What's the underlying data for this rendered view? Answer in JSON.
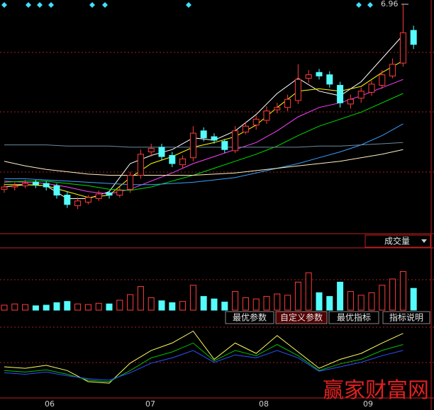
{
  "chart_data": {
    "type": "candlestick",
    "ylim": [
      5.0,
      7.0
    ],
    "candles": {
      "open": [
        5.38,
        5.4,
        5.41,
        5.44,
        5.43,
        5.41,
        5.33,
        5.24,
        5.27,
        5.3,
        5.35,
        5.33,
        5.38,
        5.5,
        5.7,
        5.74,
        5.67,
        5.59,
        5.65,
        5.88,
        5.83,
        5.79,
        5.71,
        5.87,
        5.93,
        5.97,
        6.06,
        6.08,
        6.14,
        6.33,
        6.38,
        6.36,
        6.27,
        6.11,
        6.16,
        6.21,
        6.27,
        6.35,
        6.46,
        6.74
      ],
      "close": [
        5.4,
        5.41,
        5.43,
        5.42,
        5.4,
        5.33,
        5.25,
        5.28,
        5.31,
        5.34,
        5.33,
        5.37,
        5.5,
        5.68,
        5.73,
        5.66,
        5.6,
        5.64,
        5.86,
        5.82,
        5.8,
        5.72,
        5.88,
        5.92,
        5.98,
        6.05,
        6.08,
        6.15,
        6.32,
        6.36,
        6.35,
        6.28,
        6.12,
        6.15,
        6.22,
        6.28,
        6.36,
        6.45,
        6.72,
        6.62
      ],
      "high": [
        5.43,
        5.44,
        5.46,
        5.46,
        5.45,
        5.43,
        5.36,
        5.31,
        5.33,
        5.37,
        5.37,
        5.4,
        5.53,
        5.72,
        5.77,
        5.77,
        5.7,
        5.67,
        5.92,
        5.91,
        5.86,
        5.81,
        5.92,
        5.96,
        6.01,
        6.09,
        6.12,
        6.19,
        6.45,
        6.4,
        6.41,
        6.39,
        6.3,
        6.19,
        6.25,
        6.31,
        6.4,
        6.5,
        6.96,
        6.78
      ],
      "low": [
        5.35,
        5.37,
        5.39,
        5.39,
        5.37,
        5.3,
        5.22,
        5.21,
        5.25,
        5.28,
        5.3,
        5.31,
        5.35,
        5.47,
        5.66,
        5.63,
        5.57,
        5.56,
        5.62,
        5.79,
        5.77,
        5.69,
        5.69,
        5.85,
        5.89,
        5.94,
        6.03,
        6.05,
        6.11,
        6.29,
        6.32,
        6.25,
        6.08,
        6.07,
        6.12,
        6.18,
        6.24,
        6.33,
        6.43,
        6.58
      ]
    },
    "line_x": [
      0,
      2,
      4,
      6,
      8,
      10,
      12,
      14,
      16,
      18,
      20,
      22,
      24,
      26,
      28,
      30,
      32,
      34,
      36,
      38
    ],
    "lines": [
      {
        "color": "#ffffff",
        "values": [
          5.4,
          5.42,
          5.41,
          5.3,
          5.3,
          5.36,
          5.6,
          5.67,
          5.72,
          5.82,
          5.8,
          5.88,
          6.02,
          6.2,
          6.33,
          6.22,
          6.18,
          6.3,
          6.5,
          6.7
        ]
      },
      {
        "color": "#ffff00",
        "values": [
          5.42,
          5.42,
          5.41,
          5.36,
          5.31,
          5.33,
          5.48,
          5.6,
          5.66,
          5.74,
          5.78,
          5.83,
          5.93,
          6.08,
          6.22,
          6.24,
          6.22,
          6.26,
          6.38,
          6.48
        ]
      },
      {
        "color": "#ff40ff",
        "values": [
          5.45,
          5.44,
          5.43,
          5.4,
          5.36,
          5.34,
          5.38,
          5.45,
          5.52,
          5.6,
          5.66,
          5.72,
          5.78,
          5.88,
          6.0,
          6.08,
          6.12,
          6.18,
          6.25,
          6.32
        ]
      },
      {
        "color": "#00e000",
        "values": [
          5.44,
          5.45,
          5.45,
          5.43,
          5.41,
          5.38,
          5.37,
          5.4,
          5.45,
          5.5,
          5.56,
          5.62,
          5.68,
          5.75,
          5.84,
          5.92,
          5.98,
          6.04,
          6.12,
          6.2
        ]
      },
      {
        "color": "#3aa0ff",
        "values": [
          5.47,
          5.47,
          5.46,
          5.45,
          5.44,
          5.43,
          5.42,
          5.42,
          5.43,
          5.44,
          5.46,
          5.48,
          5.52,
          5.56,
          5.6,
          5.65,
          5.7,
          5.76,
          5.84,
          5.94
        ]
      },
      {
        "color": "#fff0c0",
        "values": [
          5.62,
          5.58,
          5.55,
          5.53,
          5.51,
          5.5,
          5.5,
          5.5,
          5.5,
          5.5,
          5.51,
          5.52,
          5.54,
          5.56,
          5.58,
          5.6,
          5.62,
          5.65,
          5.68,
          5.72
        ]
      },
      {
        "color": "#6a8aa0",
        "values": [
          5.76,
          5.76,
          5.76,
          5.75,
          5.75,
          5.75,
          5.74,
          5.74,
          5.74,
          5.74,
          5.74,
          5.74,
          5.74,
          5.74,
          5.74,
          5.75,
          5.75,
          5.76,
          5.77,
          5.78
        ]
      }
    ],
    "volume": {
      "title": "成交量",
      "ylim": [
        0,
        100
      ],
      "values": [
        8,
        10,
        9,
        7,
        8,
        12,
        14,
        10,
        9,
        11,
        10,
        16,
        25,
        38,
        20,
        15,
        12,
        14,
        40,
        22,
        18,
        13,
        30,
        20,
        18,
        22,
        26,
        24,
        45,
        60,
        28,
        22,
        45,
        30,
        24,
        28,
        40,
        50,
        62,
        35
      ]
    },
    "indicator": {
      "ylim": [
        0,
        100
      ],
      "lines": [
        {
          "color": "#ffff60",
          "values": [
            40,
            38,
            42,
            35,
            20,
            18,
            45,
            62,
            72,
            88,
            50,
            72,
            58,
            82,
            60,
            38,
            50,
            58,
            72,
            85
          ]
        },
        {
          "color": "#00c000",
          "values": [
            35,
            33,
            36,
            30,
            22,
            20,
            35,
            52,
            60,
            72,
            48,
            62,
            55,
            70,
            55,
            35,
            44,
            50,
            62,
            70
          ]
        },
        {
          "color": "#3050ff",
          "values": [
            32,
            30,
            33,
            28,
            24,
            22,
            32,
            45,
            52,
            62,
            46,
            56,
            52,
            62,
            52,
            34,
            40,
            46,
            55,
            62
          ]
        }
      ]
    },
    "buttons": [
      "最优参数",
      "自定义参数",
      "最优指标",
      "指标说明"
    ],
    "x_labels": [
      "06",
      "07",
      "08",
      "09"
    ],
    "watermark": "赢家财富网"
  }
}
